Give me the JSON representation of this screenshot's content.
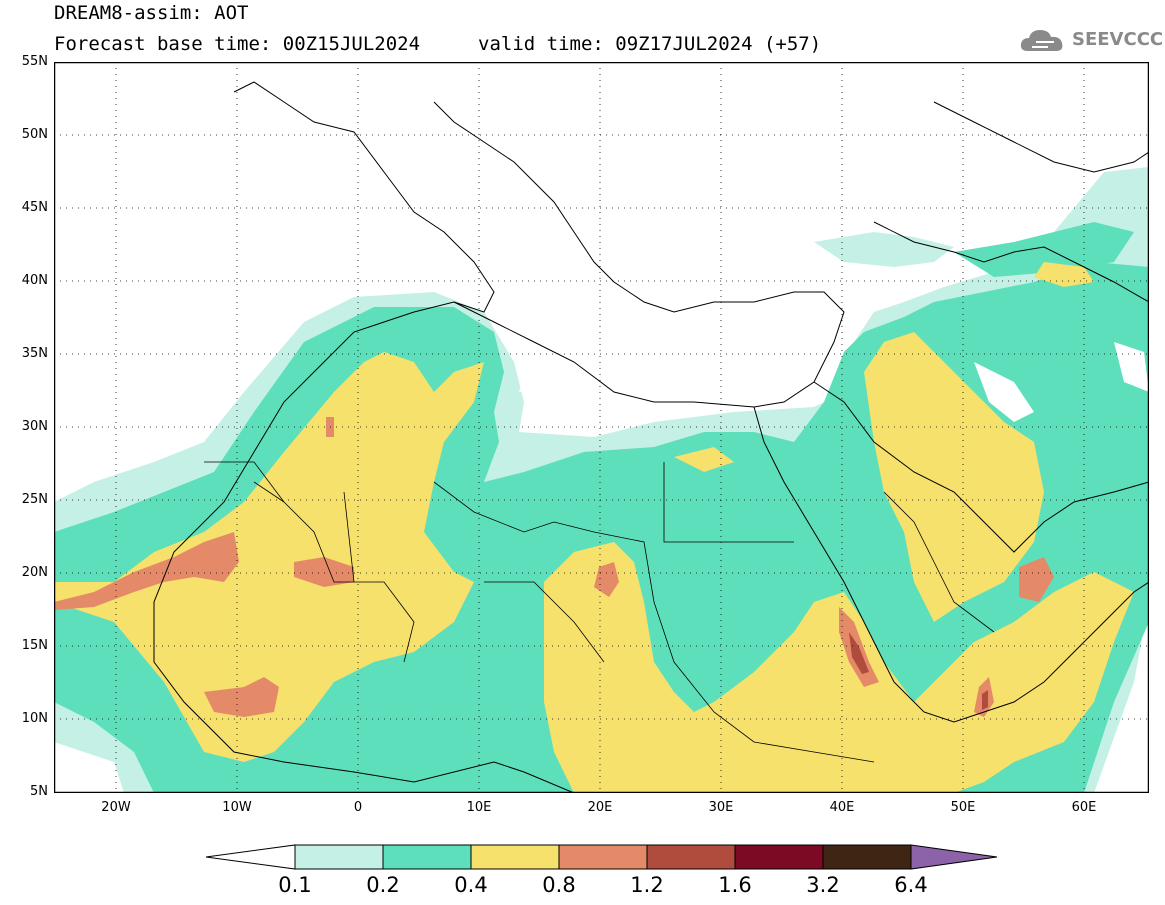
{
  "header": {
    "title": "DREAM8-assim: AOT",
    "base_time": "Forecast base time: 00Z15JUL2024",
    "valid_time": "valid time: 09Z17JUL2024 (+57)"
  },
  "logo": {
    "text": "SEEVCCC",
    "icon": "cloud-icon",
    "color": "#8a8a8a"
  },
  "map": {
    "lat_labels": [
      "55N",
      "50N",
      "45N",
      "40N",
      "35N",
      "30N",
      "25N",
      "20N",
      "15N",
      "10N",
      "5N"
    ],
    "lon_labels": [
      "20W",
      "10W",
      "0",
      "10E",
      "20E",
      "30E",
      "40E",
      "50E",
      "60E"
    ]
  },
  "colorbar": {
    "labels": [
      "0.1",
      "0.2",
      "0.4",
      "0.8",
      "1.2",
      "1.6",
      "3.2",
      "6.4"
    ],
    "colors": [
      "#ffffff",
      "#c4f0e6",
      "#5ddfbb",
      "#f5e16c",
      "#e58a68",
      "#b04c3e",
      "#7c0a24",
      "#3e2514",
      "#8c63a8"
    ]
  }
}
